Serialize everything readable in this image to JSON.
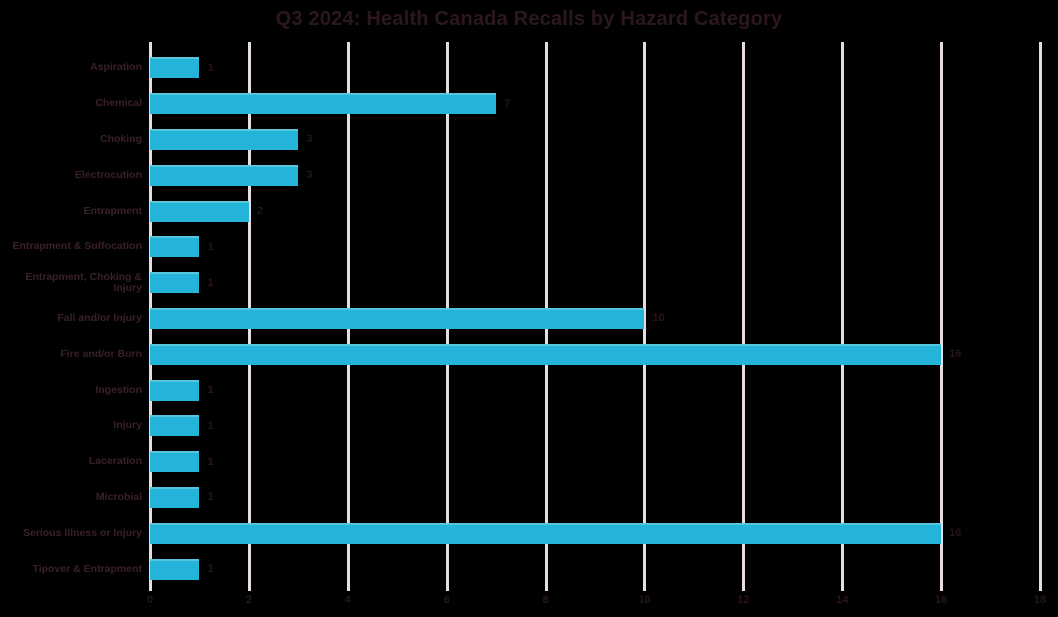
{
  "chart_data": {
    "type": "bar",
    "orientation": "horizontal",
    "title": "Q3 2024: Health Canada Recalls by Hazard Category",
    "categories": [
      "Aspiration",
      "Chemical",
      "Choking",
      "Electrocution",
      "Entrapment",
      "Entrapment & Suffocation",
      "Entrapment, Choking & Injury",
      "Fall and/or Injury",
      "Fire and/or Burn",
      "Ingestion",
      "Injury",
      "Laceration",
      "Microbial",
      "Serious Illness or Injury",
      "Tipover & Entrapment"
    ],
    "values": [
      1,
      7,
      3,
      3,
      2,
      1,
      1,
      10,
      16,
      1,
      1,
      1,
      1,
      16,
      1
    ],
    "data_labels": [
      1,
      7,
      3,
      3,
      2,
      1,
      1,
      10,
      16,
      1,
      1,
      1,
      1,
      16,
      1
    ],
    "xlabel": "",
    "ylabel": "",
    "xlim": [
      0,
      18
    ],
    "xticks": [
      0,
      2,
      4,
      6,
      8,
      10,
      12,
      14,
      16,
      18
    ],
    "grid": "vertical-only",
    "legend": "none",
    "colors": {
      "background": "#000000",
      "bar": "#24b4d9",
      "bar_top_highlight": "#56c6de",
      "gridline": "#e7dce0",
      "title_text": "#2c171d",
      "category_text": "#3a2026",
      "value_text": "#281519"
    }
  }
}
